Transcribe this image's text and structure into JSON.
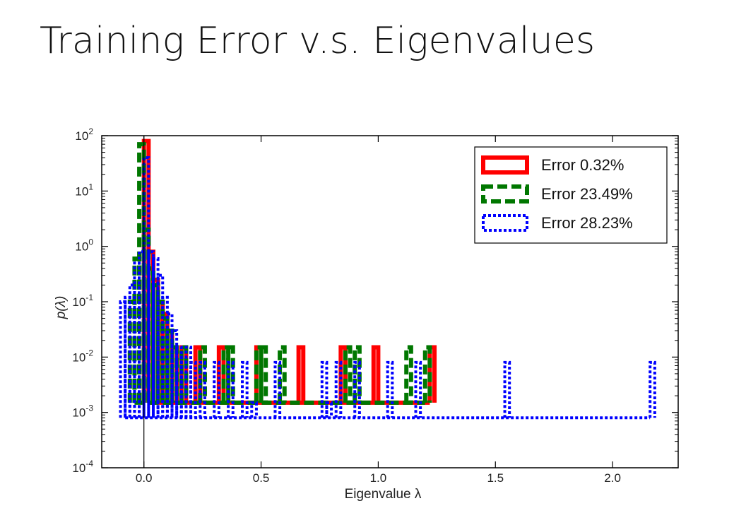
{
  "slide": {
    "title": "Training Error v.s. Eigenvalues"
  },
  "chart_data": {
    "type": "line",
    "xlabel": "Eigenvalue λ",
    "ylabel": "p(λ)",
    "xlim": [
      -0.18,
      2.28
    ],
    "ylim": [
      0.0001,
      100
    ],
    "yscale": "log",
    "x_ticks": [
      0.0,
      0.5,
      1.0,
      1.5,
      2.0
    ],
    "x_tick_labels": [
      "0.0",
      "0.5",
      "1.0",
      "1.5",
      "2.0"
    ],
    "y_ticks": [
      0.0001,
      0.001,
      0.01,
      0.1,
      1,
      10,
      100
    ],
    "y_tick_labels": [
      {
        "base": "10",
        "exp": "-4"
      },
      {
        "base": "10",
        "exp": "-3"
      },
      {
        "base": "10",
        "exp": "-2"
      },
      {
        "base": "10",
        "exp": "-1"
      },
      {
        "base": "10",
        "exp": "0"
      },
      {
        "base": "10",
        "exp": "1"
      },
      {
        "base": "10",
        "exp": "2"
      }
    ],
    "vline_x": 0.0,
    "legend_position": "top-right",
    "series": [
      {
        "name": "Error  0.32%",
        "color": "#ff0000",
        "style": "solid",
        "bin_width": 0.02,
        "floor": 0.0015,
        "bins": [
          [
            0.0,
            80
          ],
          [
            0.02,
            0.8
          ],
          [
            0.04,
            0.25
          ],
          [
            0.06,
            0.1
          ],
          [
            0.08,
            0.06
          ],
          [
            0.1,
            0.03
          ],
          [
            0.12,
            0.015
          ],
          [
            0.14,
            0.0015
          ],
          [
            0.16,
            0.015
          ],
          [
            0.22,
            0.015
          ],
          [
            0.32,
            0.015
          ],
          [
            0.48,
            0.015
          ],
          [
            0.66,
            0.015
          ],
          [
            0.84,
            0.015
          ],
          [
            0.98,
            0.015
          ],
          [
            1.22,
            0.015
          ]
        ]
      },
      {
        "name": "Error 23.49%",
        "color": "#007700",
        "style": "dashed",
        "bin_width": 0.02,
        "floor": 0.0015,
        "bins": [
          [
            -0.06,
            0.1
          ],
          [
            -0.04,
            0.6
          ],
          [
            -0.02,
            70
          ],
          [
            0.0,
            2
          ],
          [
            0.02,
            0.4
          ],
          [
            0.04,
            0.2
          ],
          [
            0.06,
            0.1
          ],
          [
            0.08,
            0.05
          ],
          [
            0.1,
            0.03
          ],
          [
            0.12,
            0.015
          ],
          [
            0.14,
            0.0015
          ],
          [
            0.16,
            0.015
          ],
          [
            0.24,
            0.015
          ],
          [
            0.34,
            0.015
          ],
          [
            0.36,
            0.015
          ],
          [
            0.48,
            0.015
          ],
          [
            0.5,
            0.015
          ],
          [
            0.58,
            0.015
          ],
          [
            0.86,
            0.015
          ],
          [
            0.9,
            0.015
          ],
          [
            1.12,
            0.015
          ],
          [
            1.2,
            0.015
          ]
        ]
      },
      {
        "name": "Error 28.23%",
        "color": "#0000ff",
        "style": "dotted",
        "bin_width": 0.02,
        "floor": 0.0008,
        "bins": [
          [
            -0.1,
            0.1
          ],
          [
            -0.08,
            0.12
          ],
          [
            -0.06,
            0.2
          ],
          [
            -0.04,
            0.5
          ],
          [
            -0.02,
            0.8
          ],
          [
            0.0,
            40
          ],
          [
            0.02,
            0.8
          ],
          [
            0.04,
            0.6
          ],
          [
            0.06,
            0.3
          ],
          [
            0.08,
            0.12
          ],
          [
            0.1,
            0.06
          ],
          [
            0.12,
            0.03
          ],
          [
            0.14,
            0.015
          ],
          [
            0.16,
            0.01
          ],
          [
            0.18,
            0.015
          ],
          [
            0.2,
            0.008
          ],
          [
            0.24,
            0.008
          ],
          [
            0.3,
            0.008
          ],
          [
            0.36,
            0.008
          ],
          [
            0.42,
            0.008
          ],
          [
            0.46,
            0.0015
          ],
          [
            0.56,
            0.008
          ],
          [
            0.76,
            0.008
          ],
          [
            0.78,
            0.0015
          ],
          [
            0.82,
            0.008
          ],
          [
            0.9,
            0.008
          ],
          [
            1.04,
            0.008
          ],
          [
            1.16,
            0.008
          ],
          [
            1.54,
            0.008
          ],
          [
            2.16,
            0.008
          ]
        ]
      }
    ]
  }
}
